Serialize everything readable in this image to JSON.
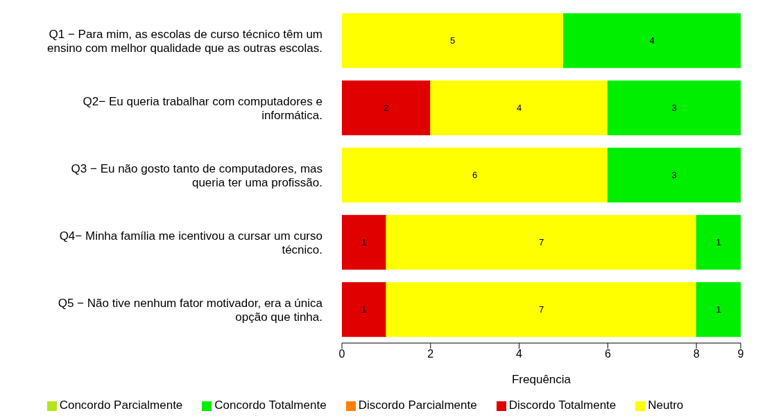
{
  "chart_data": {
    "type": "bar",
    "orientation": "horizontal",
    "stacked": true,
    "xlabel": "Frequência",
    "categories": [
      "Q1 − Para mim, as escolas de curso técnico têm um ensino com melhor qualidade que as outras escolas.",
      "Q2− Eu queria trabalhar com computadores e informática.",
      "Q3 − Eu não gosto tanto de computadores, mas queria ter uma profissão.",
      "Q4− Minha família me icentivou a cursar um curso técnico.",
      "Q5 − Não tive nenhum fator motivador, era a única opção que tinha."
    ],
    "series": [
      {
        "name": "Discordo Totalmente",
        "color": "#e00000",
        "values": [
          null,
          2,
          null,
          1,
          1
        ]
      },
      {
        "name": "Discordo Parcialmente",
        "color": "#ff8000",
        "values": [
          null,
          null,
          null,
          null,
          null
        ]
      },
      {
        "name": "Neutro",
        "color": "#ffff00",
        "values": [
          5,
          4,
          6,
          7,
          7
        ]
      },
      {
        "name": "Concordo Parcialmente",
        "color": "#b4e61e",
        "values": [
          null,
          null,
          null,
          null,
          null
        ]
      },
      {
        "name": "Concordo Totalmente",
        "color": "#00ee00",
        "values": [
          4,
          3,
          3,
          1,
          1
        ]
      }
    ],
    "xlim": [
      0,
      9
    ],
    "xticks": [
      0,
      2,
      4,
      6,
      8,
      9
    ],
    "data_labels": true,
    "grid": false,
    "legend": "bottom"
  }
}
